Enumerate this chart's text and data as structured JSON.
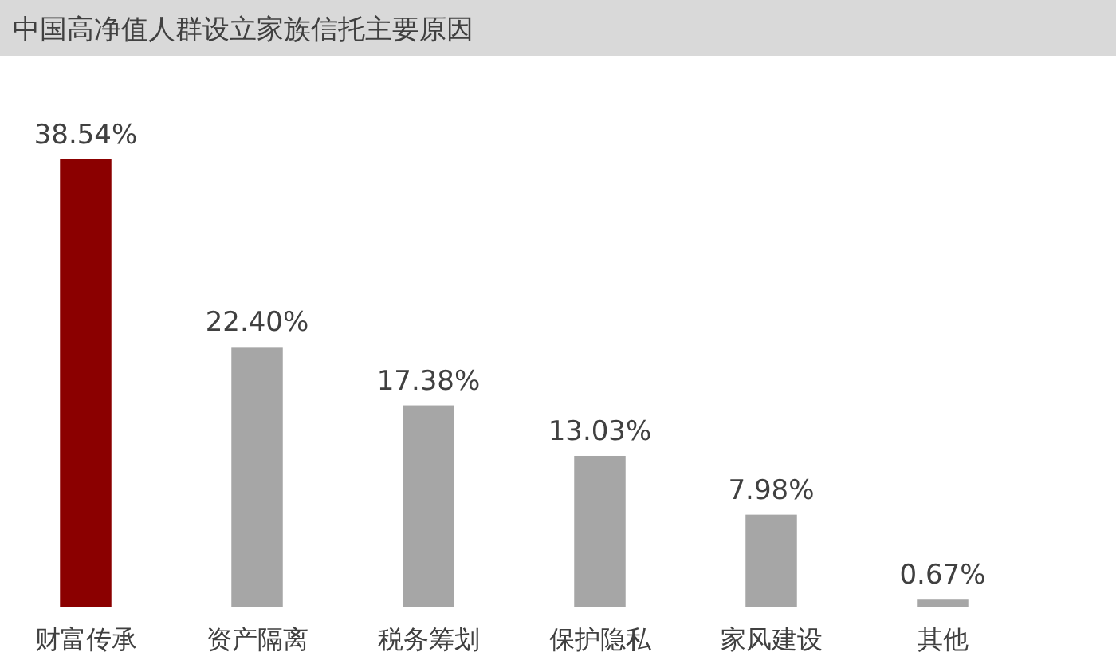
{
  "chart_data": {
    "type": "bar",
    "title": "中国高净值人群设立家族信托主要原因",
    "categories": [
      "财富传承",
      "资产隔离",
      "税务筹划",
      "保护隐私",
      "家风建设",
      "其他"
    ],
    "values": [
      38.54,
      22.4,
      17.38,
      13.03,
      7.98,
      0.67
    ],
    "value_labels": [
      "38.54%",
      "22.40%",
      "17.38%",
      "13.03%",
      "7.98%",
      "0.67%"
    ],
    "colors": [
      "#8b0000",
      "#a6a6a6",
      "#a6a6a6",
      "#a6a6a6",
      "#a6a6a6",
      "#a6a6a6"
    ]
  }
}
